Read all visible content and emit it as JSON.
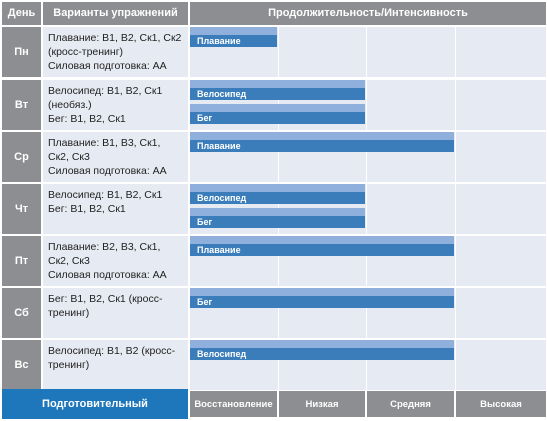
{
  "header": {
    "day": "День",
    "exercises": "Варианты упражнений",
    "duration": "Продолжительность/Интенсивность"
  },
  "rows": [
    {
      "day": "Пн",
      "exercises": "Плавание: В1, В2, Ск1, Ск2\n(кросс-тренинг)\nСиловая подготовка: АА",
      "bars": [
        {
          "label": "Плавание",
          "level": 1
        }
      ]
    },
    {
      "day": "Вт",
      "exercises": "Велосипед: В1, В2, Ск1\n(необяз.)\nБег: В1, В2, Ск1",
      "bars": [
        {
          "label": "Велосипед",
          "level": 2
        },
        {
          "label": "Бег",
          "level": 2
        }
      ]
    },
    {
      "day": "Ср",
      "exercises": "Плавание: В1, В3, Ск1,\nСк2, Ск3\nСиловая подготовка: АА",
      "bars": [
        {
          "label": "Плавание",
          "level": 3
        }
      ]
    },
    {
      "day": "Чт",
      "exercises": "Велосипед: В1, В2, Ск1\nБег: В1, В2, Ск1",
      "bars": [
        {
          "label": "Велосипед",
          "level": 2
        },
        {
          "label": "Бег",
          "level": 2
        }
      ]
    },
    {
      "day": "Пт",
      "exercises": "Плавание: В2, В3, Ск1,\nСк2, Ск3\nСиловая подготовка: АА",
      "bars": [
        {
          "label": "Плавание",
          "level": 3
        }
      ]
    },
    {
      "day": "Сб",
      "exercises": "Бег: В1, В2, Ск1 (кросс-\nтренинг)",
      "bars": [
        {
          "label": "Бег",
          "level": 3
        }
      ]
    },
    {
      "day": "Вс",
      "exercises": "Велосипед: В1, В2 (кросс-\nтренинг)",
      "bars": [
        {
          "label": "Велосипед",
          "level": 3
        }
      ]
    }
  ],
  "footer": {
    "phase": "Подготовительный",
    "levels": [
      "Восстановление",
      "Низкая",
      "Средняя",
      "Высокая"
    ]
  },
  "colors": {
    "header_gray": "#8c8e91",
    "cell_bg": "#e6eaf2",
    "bar_light": "#8fb0dc",
    "bar_dark": "#3a7dba",
    "phase_blue": "#1f77bb"
  }
}
